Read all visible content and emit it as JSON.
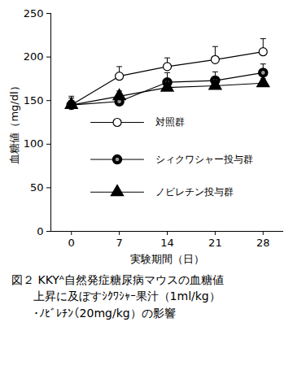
{
  "chart_data": {
    "type": "line",
    "caption": [
      "図２ KKYᴬ自然発症糖尿病マウスの血糖値",
      "上昇に及ぼすｼｸﾜｼｬｰ果汁（1ml/kg）",
      "・ﾉﾋﾞﾚﾁﾝ（20mg/kg）の影響"
    ],
    "x_label": "実験期間（日）",
    "y_label": "血糖値（mg/dl）",
    "x": [
      0,
      7,
      14,
      21,
      28
    ],
    "xlim": [
      -3,
      31
    ],
    "xticks": [
      0,
      7,
      14,
      21,
      28
    ],
    "ylim": [
      0,
      250
    ],
    "yticks": [
      0,
      50,
      100,
      150,
      200,
      250
    ],
    "grid": false,
    "legend": "left",
    "series": [
      {
        "name": "対照群",
        "color": "#000000",
        "marker": "circle_open",
        "values": [
          145,
          178,
          189,
          197,
          206
        ],
        "errors": [
          10,
          11,
          10,
          15,
          15
        ]
      },
      {
        "name": "シィクワシャー投与群",
        "color": "#000000",
        "marker": "circle_half",
        "values": [
          145,
          149,
          171,
          173,
          182
        ],
        "errors": [
          8,
          8,
          11,
          10,
          10
        ]
      },
      {
        "name": "ノビレチン投与群",
        "color": "#000000",
        "marker": "triangle",
        "values": [
          145,
          155,
          165,
          167,
          170
        ],
        "errors": [
          5,
          6,
          9,
          6,
          5
        ]
      }
    ]
  }
}
